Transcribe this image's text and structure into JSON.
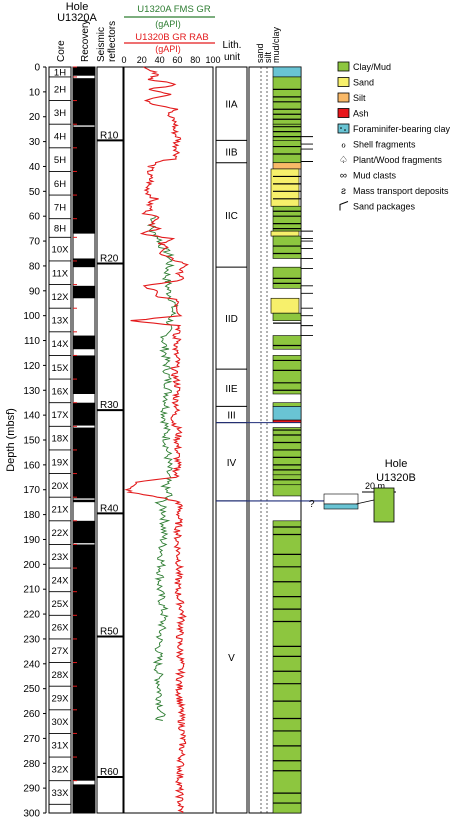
{
  "title": {
    "line1": "Hole",
    "line2": "U1320A"
  },
  "headers": {
    "core": "Core",
    "recovery": "Recovery",
    "seismic": [
      "Seismic",
      "reflectors"
    ],
    "lith": [
      "Lith.",
      "unit"
    ],
    "grain": [
      "sand",
      "silt",
      "mud/clay"
    ]
  },
  "curves": {
    "fms": {
      "label": "U1320A FMS GR",
      "unit": "(gAPI)",
      "color": "#2e7d32"
    },
    "rab": {
      "label": "U1320B GR RAB",
      "unit": "(gAPI)",
      "color": "#e31a1c"
    },
    "ticks": [
      20,
      40,
      60,
      80,
      100
    ],
    "zero": "0"
  },
  "depth_axis": {
    "label": "Depth (mbsf)",
    "ticks": [
      0,
      10,
      20,
      30,
      40,
      50,
      60,
      70,
      80,
      90,
      100,
      110,
      120,
      130,
      140,
      150,
      160,
      170,
      180,
      190,
      200,
      210,
      220,
      230,
      240,
      250,
      260,
      270,
      280,
      290,
      300
    ]
  },
  "cores": [
    {
      "name": "1H",
      "top": 0,
      "bottom": 4
    },
    {
      "name": "2H",
      "top": 4,
      "bottom": 13.5
    },
    {
      "name": "3H",
      "top": 13.5,
      "bottom": 23
    },
    {
      "name": "4H",
      "top": 23,
      "bottom": 32.5
    },
    {
      "name": "5H",
      "top": 32.5,
      "bottom": 42
    },
    {
      "name": "6H",
      "top": 42,
      "bottom": 51.5
    },
    {
      "name": "7H",
      "top": 51.5,
      "bottom": 61
    },
    {
      "name": "8H",
      "top": 61,
      "bottom": 68.5
    },
    {
      "name": "10X",
      "top": 68.5,
      "bottom": 78
    },
    {
      "name": "11X",
      "top": 78,
      "bottom": 87.5
    },
    {
      "name": "12X",
      "top": 87.5,
      "bottom": 97
    },
    {
      "name": "13X",
      "top": 97,
      "bottom": 106.5
    },
    {
      "name": "14X",
      "top": 106.5,
      "bottom": 116
    },
    {
      "name": "15X",
      "top": 116,
      "bottom": 125.5
    },
    {
      "name": "16X",
      "top": 125.5,
      "bottom": 135
    },
    {
      "name": "17X",
      "top": 135,
      "bottom": 144.5
    },
    {
      "name": "18X",
      "top": 144.5,
      "bottom": 154
    },
    {
      "name": "19X",
      "top": 154,
      "bottom": 163.5
    },
    {
      "name": "20X",
      "top": 163.5,
      "bottom": 173
    },
    {
      "name": "21X",
      "top": 173,
      "bottom": 182.5
    },
    {
      "name": "22X",
      "top": 182.5,
      "bottom": 192
    },
    {
      "name": "23X",
      "top": 192,
      "bottom": 201.5
    },
    {
      "name": "24X",
      "top": 201.5,
      "bottom": 211
    },
    {
      "name": "25X",
      "top": 211,
      "bottom": 220.5
    },
    {
      "name": "26X",
      "top": 220.5,
      "bottom": 230
    },
    {
      "name": "27X",
      "top": 230,
      "bottom": 239.5
    },
    {
      "name": "28X",
      "top": 239.5,
      "bottom": 249
    },
    {
      "name": "29X",
      "top": 249,
      "bottom": 258.5
    },
    {
      "name": "30X",
      "top": 258.5,
      "bottom": 268
    },
    {
      "name": "31X",
      "top": 268,
      "bottom": 277.5
    },
    {
      "name": "32X",
      "top": 277.5,
      "bottom": 287
    },
    {
      "name": "33X",
      "top": 287,
      "bottom": 296.5
    }
  ],
  "recovery_gaps": [
    [
      3.5,
      4.5
    ],
    [
      23.5,
      24
    ],
    [
      67,
      77
    ],
    [
      80.5,
      88
    ],
    [
      93,
      108
    ],
    [
      113.5,
      116
    ],
    [
      131.5,
      135
    ],
    [
      144.2,
      145
    ],
    [
      173.5,
      174
    ],
    [
      175,
      182.5
    ],
    [
      191.5,
      192
    ],
    [
      287,
      288.5
    ]
  ],
  "seismic_reflectors": [
    {
      "name": "R10",
      "depth": 29.5
    },
    {
      "name": "R20",
      "depth": 79
    },
    {
      "name": "R30",
      "depth": 138
    },
    {
      "name": "R40",
      "depth": 179.5
    },
    {
      "name": "R50",
      "depth": 229
    },
    {
      "name": "R60",
      "depth": 285.5
    }
  ],
  "lith_units": [
    {
      "name": "IIA",
      "top": 0,
      "bottom": 29.5
    },
    {
      "name": "IIB",
      "top": 29.5,
      "bottom": 38.5
    },
    {
      "name": "IIC",
      "top": 38.5,
      "bottom": 80.5
    },
    {
      "name": "IID",
      "top": 80.5,
      "bottom": 121.5
    },
    {
      "name": "IIE",
      "top": 121.5,
      "bottom": 136.5
    },
    {
      "name": "III",
      "top": 136.5,
      "bottom": 143
    },
    {
      "name": "IV",
      "top": 143,
      "bottom": 174.5
    },
    {
      "name": "V",
      "top": 174.5,
      "bottom": 300
    }
  ],
  "legend": [
    {
      "label": "Clay/Mud",
      "color": "#8dc63f",
      "kind": "box"
    },
    {
      "label": "Sand",
      "color": "#f7f06b",
      "kind": "box"
    },
    {
      "label": "Silt",
      "color": "#f9b968",
      "kind": "box"
    },
    {
      "label": "Ash",
      "color": "#e8161b",
      "kind": "box"
    },
    {
      "label": "Foraminifer-bearing clay",
      "color": "#69c4d4",
      "kind": "dots"
    },
    {
      "label": "Shell fragments",
      "symbol": "ℴ",
      "kind": "symbol"
    },
    {
      "label": "Plant/Wood fragments",
      "symbol": "♤",
      "kind": "symbol"
    },
    {
      "label": "Mud clasts",
      "symbol": "∞",
      "kind": "symbol"
    },
    {
      "label": "Mass transport deposits",
      "symbol": "ƨ",
      "kind": "symbol"
    },
    {
      "label": "Sand packages",
      "symbol": "",
      "kind": "bracket"
    }
  ],
  "inset": {
    "title": [
      "Hole",
      "U1320B"
    ],
    "scale": "20 m",
    "question": "?"
  },
  "colors": {
    "clay": "#8dc63f",
    "sand": "#f7f06b",
    "silt": "#f9b968",
    "ash": "#e8161b",
    "foram": "#69c4d4",
    "correlation": "#1f2d7a"
  }
}
